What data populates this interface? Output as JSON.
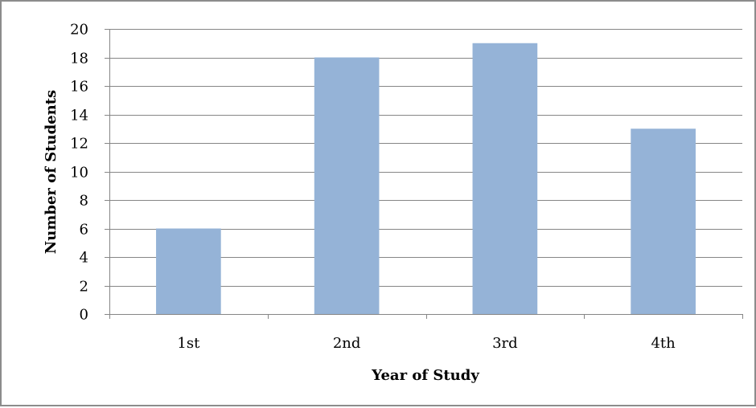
{
  "chart_data": {
    "type": "bar",
    "title": "",
    "xlabel": "Year of Study",
    "ylabel": "Number of Students",
    "categories": [
      "1st",
      "2nd",
      "3rd",
      "4th"
    ],
    "values": [
      6,
      18,
      19,
      13
    ],
    "ylim": [
      0,
      20
    ],
    "yticks": [
      0,
      2,
      4,
      6,
      8,
      10,
      12,
      14,
      16,
      18,
      20
    ],
    "grid": true,
    "legend": "none",
    "bar_color": "#95B3D7",
    "gridline_color": "#868686"
  }
}
